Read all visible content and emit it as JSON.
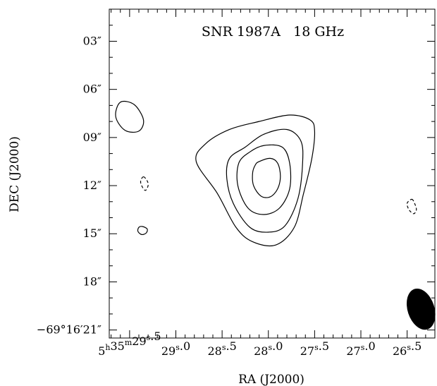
{
  "chart_data": {
    "type": "contour",
    "title": "SNR 1987A   18 GHz",
    "xlabel": "RA (J2000)",
    "ylabel": "DEC (J2000)",
    "x_units": "RA seconds (5h35m)",
    "y_units": "DEC arcsec (-69°16')",
    "xlim": [
      29.72,
      26.2
    ],
    "ylim": [
      21.5,
      1.0
    ],
    "x_ticks": [
      {
        "value": 29.5,
        "label_parts": [
          "5",
          "h",
          "35",
          "m",
          "29",
          "s",
          ".5"
        ]
      },
      {
        "value": 29.0,
        "label_parts": [
          "",
          "",
          "",
          "",
          "29",
          "s",
          ".0"
        ]
      },
      {
        "value": 28.5,
        "label_parts": [
          "",
          "",
          "",
          "",
          "28",
          "s",
          ".5"
        ]
      },
      {
        "value": 28.0,
        "label_parts": [
          "",
          "",
          "",
          "",
          "28",
          "s",
          ".0"
        ]
      },
      {
        "value": 27.5,
        "label_parts": [
          "",
          "",
          "",
          "",
          "27",
          "s",
          ".5"
        ]
      },
      {
        "value": 27.0,
        "label_parts": [
          "",
          "",
          "",
          "",
          "27",
          "s",
          ".0"
        ]
      },
      {
        "value": 26.5,
        "label_parts": [
          "",
          "",
          "",
          "",
          "26",
          "s",
          ".5"
        ]
      }
    ],
    "y_ticks": [
      {
        "value": 3,
        "label": "03″"
      },
      {
        "value": 6,
        "label": "06″"
      },
      {
        "value": 9,
        "label": "09″"
      },
      {
        "value": 12,
        "label": "12″"
      },
      {
        "value": 15,
        "label": "15″"
      },
      {
        "value": 18,
        "label": "18″"
      },
      {
        "value": 21,
        "label": "−69°16′21″"
      }
    ],
    "contours": [
      {
        "level": 1,
        "style": "solid",
        "points": [
          [
            28.42,
            8.5
          ],
          [
            28.1,
            8.0
          ],
          [
            27.77,
            7.6
          ],
          [
            27.55,
            7.9
          ],
          [
            27.5,
            8.6
          ],
          [
            27.53,
            10.3
          ],
          [
            27.62,
            12.5
          ],
          [
            27.72,
            14.6
          ],
          [
            27.92,
            15.7
          ],
          [
            28.17,
            15.5
          ],
          [
            28.35,
            14.6
          ],
          [
            28.55,
            12.5
          ],
          [
            28.78,
            10.5
          ],
          [
            28.68,
            9.4
          ]
        ]
      },
      {
        "level": 2,
        "style": "solid",
        "points": [
          [
            28.25,
            9.6
          ],
          [
            28.05,
            8.8
          ],
          [
            27.8,
            8.5
          ],
          [
            27.65,
            9.2
          ],
          [
            27.63,
            10.6
          ],
          [
            27.68,
            12.8
          ],
          [
            27.82,
            14.5
          ],
          [
            28.0,
            14.9
          ],
          [
            28.2,
            14.6
          ],
          [
            28.38,
            13.1
          ],
          [
            28.45,
            11.5
          ],
          [
            28.42,
            10.3
          ]
        ]
      },
      {
        "level": 3,
        "style": "solid",
        "points": [
          [
            28.2,
            9.9
          ],
          [
            28.05,
            9.5
          ],
          [
            27.85,
            9.6
          ],
          [
            27.77,
            10.6
          ],
          [
            27.77,
            12.2
          ],
          [
            27.88,
            13.4
          ],
          [
            28.05,
            13.8
          ],
          [
            28.22,
            13.4
          ],
          [
            28.33,
            12.0
          ],
          [
            28.32,
            10.6
          ]
        ]
      },
      {
        "level": 4,
        "style": "solid",
        "points": [
          [
            28.1,
            10.5
          ],
          [
            27.98,
            10.3
          ],
          [
            27.9,
            10.6
          ],
          [
            27.87,
            11.4
          ],
          [
            27.9,
            12.2
          ],
          [
            27.98,
            12.7
          ],
          [
            28.08,
            12.65
          ],
          [
            28.16,
            12.0
          ],
          [
            28.17,
            11.2
          ],
          [
            28.14,
            10.7
          ]
        ]
      },
      {
        "level": 5,
        "style": "solid",
        "points": [
          [
            29.6,
            6.8
          ],
          [
            29.45,
            6.95
          ],
          [
            29.35,
            7.9
          ],
          [
            29.4,
            8.6
          ],
          [
            29.55,
            8.55
          ],
          [
            29.65,
            7.7
          ]
        ]
      },
      {
        "level": 6,
        "style": "dashed",
        "points": [
          [
            29.35,
            11.45
          ],
          [
            29.31,
            11.7
          ],
          [
            29.3,
            12.0
          ],
          [
            29.33,
            12.3
          ],
          [
            29.37,
            12.0
          ],
          [
            29.38,
            11.7
          ]
        ]
      },
      {
        "level": 7,
        "style": "solid",
        "points": [
          [
            29.36,
            14.55
          ],
          [
            29.31,
            14.7
          ],
          [
            29.32,
            14.95
          ],
          [
            29.37,
            15.05
          ],
          [
            29.41,
            14.85
          ],
          [
            29.4,
            14.6
          ]
        ]
      },
      {
        "level": 8,
        "style": "dashed",
        "points": [
          [
            26.45,
            12.85
          ],
          [
            26.42,
            13.1
          ],
          [
            26.4,
            13.5
          ],
          [
            26.43,
            13.75
          ],
          [
            26.48,
            13.5
          ],
          [
            26.5,
            13.1
          ]
        ]
      }
    ],
    "beam": {
      "center": [
        26.35,
        19.7
      ],
      "shape": "filled-ellipse"
    },
    "grid": false,
    "legend": "none",
    "colors": {
      "contour": "#000000",
      "beam": "#000000",
      "frame": "#000000"
    }
  }
}
